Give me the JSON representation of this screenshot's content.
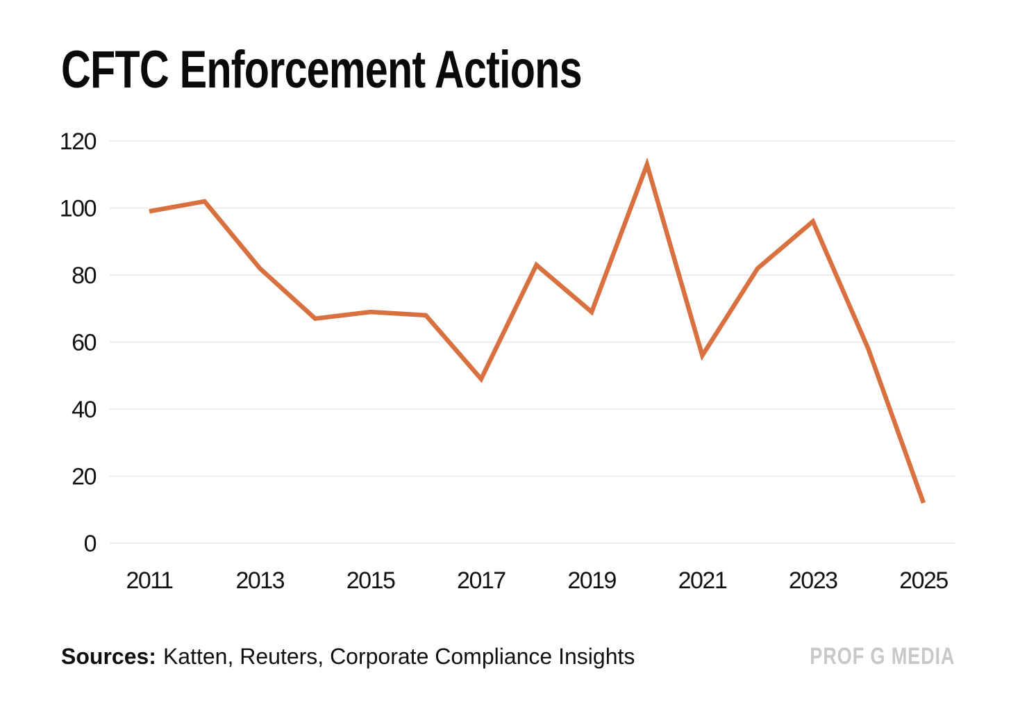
{
  "header": {
    "title": "CFTC Enforcement Actions"
  },
  "chart_data": {
    "type": "line",
    "title": "CFTC Enforcement Actions",
    "x": [
      2011,
      2012,
      2013,
      2014,
      2015,
      2016,
      2017,
      2018,
      2019,
      2020,
      2021,
      2022,
      2023,
      2024,
      2025
    ],
    "series": [
      {
        "name": "CFTC enforcement actions",
        "values": [
          99,
          102,
          82,
          67,
          69,
          68,
          49,
          83,
          69,
          113,
          56,
          82,
          96,
          58,
          12
        ]
      }
    ],
    "xlabel": "",
    "ylabel": "",
    "ylim": [
      0,
      120
    ],
    "yticks": [
      0,
      20,
      40,
      60,
      80,
      100,
      120
    ],
    "xtick_labels": [
      "2011",
      "2013",
      "2015",
      "2017",
      "2019",
      "2021",
      "2023",
      "2025"
    ],
    "grid": true,
    "legend_position": "none",
    "line_color": "#D8703F",
    "gridline_color": "#ECECEC",
    "tick_text_color": "#111111"
  },
  "footer": {
    "sources_label": "Sources:",
    "sources_text": "Katten, Reuters, Corporate Compliance Insights",
    "watermark": "PROF G MEDIA"
  }
}
